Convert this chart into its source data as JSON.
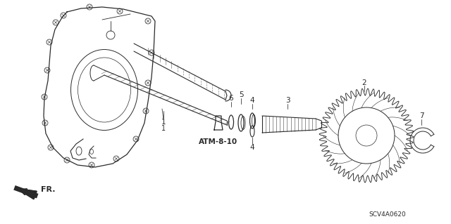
{
  "bg_color": "#ffffff",
  "lc": "#2a2a2a",
  "figsize": [
    6.4,
    3.19
  ],
  "dpi": 100,
  "part_code": "SCV4A0620",
  "atm_label": "ATM-8-10",
  "fr_label": "FR."
}
